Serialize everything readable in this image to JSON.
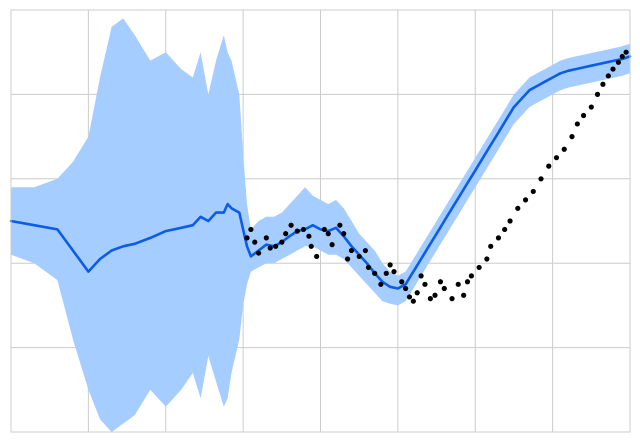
{
  "chart_data": {
    "type": "line",
    "title": "",
    "xlabel": "",
    "ylabel": "",
    "xlim": [
      0,
      8
    ],
    "ylim": [
      -2.5,
      2.5
    ],
    "grid": true,
    "legend": "none",
    "x_gridlines": [
      1,
      2,
      3,
      4,
      5,
      6,
      7
    ],
    "y_gridlines": [
      -1.5,
      -0.5,
      0.5,
      1.5
    ],
    "colors": {
      "mean_line": "#0b5ce6",
      "confidence_band": "#a6cdff",
      "observations": "#000000",
      "grid": "#cccccc"
    },
    "series": [
      {
        "role": "prediction",
        "x": [
          0.0,
          0.3,
          0.6,
          0.8,
          1.0,
          1.15,
          1.3,
          1.45,
          1.6,
          1.8,
          2.0,
          2.2,
          2.35,
          2.45,
          2.55,
          2.65,
          2.75,
          2.8,
          2.85,
          2.95,
          3.0,
          3.05,
          3.1,
          3.2,
          3.3,
          3.4,
          3.5,
          3.6,
          3.7,
          3.8,
          3.9,
          4.0,
          4.1,
          4.2,
          4.3,
          4.4,
          4.5,
          4.6,
          4.7,
          4.8,
          4.9,
          5.0,
          5.1,
          5.2,
          5.3,
          5.4,
          5.5,
          5.6,
          5.7,
          5.8,
          5.9,
          6.0,
          6.1,
          6.2,
          6.3,
          6.4,
          6.5,
          6.6,
          6.7,
          6.8,
          6.9,
          7.0,
          7.1,
          7.2,
          7.3,
          7.4,
          7.5,
          7.6,
          7.7,
          7.8,
          7.9,
          8.0
        ],
        "mean": [
          0.0,
          -0.05,
          -0.1,
          -0.35,
          -0.6,
          -0.45,
          -0.35,
          -0.3,
          -0.27,
          -0.2,
          -0.12,
          -0.08,
          -0.05,
          0.05,
          0.0,
          0.1,
          0.1,
          0.2,
          0.15,
          0.1,
          -0.1,
          -0.3,
          -0.42,
          -0.35,
          -0.28,
          -0.3,
          -0.25,
          -0.18,
          -0.12,
          -0.1,
          -0.05,
          -0.1,
          -0.12,
          -0.08,
          -0.18,
          -0.3,
          -0.4,
          -0.5,
          -0.62,
          -0.72,
          -0.78,
          -0.8,
          -0.75,
          -0.6,
          -0.45,
          -0.3,
          -0.15,
          0.0,
          0.15,
          0.3,
          0.45,
          0.6,
          0.75,
          0.9,
          1.05,
          1.2,
          1.35,
          1.45,
          1.55,
          1.6,
          1.65,
          1.7,
          1.75,
          1.78,
          1.8,
          1.82,
          1.84,
          1.86,
          1.88,
          1.9,
          1.92,
          1.95
        ],
        "upper": [
          0.4,
          0.4,
          0.5,
          0.7,
          1.0,
          1.7,
          2.3,
          2.4,
          2.2,
          1.9,
          2.0,
          1.8,
          1.7,
          2.0,
          1.5,
          1.9,
          2.2,
          2.0,
          1.9,
          1.5,
          0.8,
          0.2,
          -0.1,
          0.0,
          0.05,
          0.05,
          0.1,
          0.2,
          0.3,
          0.4,
          0.3,
          0.25,
          0.2,
          0.25,
          0.15,
          0.0,
          -0.15,
          -0.25,
          -0.35,
          -0.5,
          -0.6,
          -0.65,
          -0.6,
          -0.45,
          -0.3,
          -0.15,
          0.0,
          0.15,
          0.3,
          0.45,
          0.6,
          0.75,
          0.9,
          1.05,
          1.2,
          1.35,
          1.5,
          1.6,
          1.7,
          1.75,
          1.8,
          1.85,
          1.9,
          1.93,
          1.95,
          1.97,
          1.99,
          2.01,
          2.03,
          2.05,
          2.07,
          2.1
        ],
        "lower": [
          -0.4,
          -0.5,
          -0.7,
          -1.4,
          -2.0,
          -2.35,
          -2.5,
          -2.4,
          -2.3,
          -2.0,
          -2.2,
          -2.0,
          -1.8,
          -2.1,
          -1.6,
          -1.9,
          -2.2,
          -2.1,
          -1.8,
          -1.4,
          -1.0,
          -0.75,
          -0.6,
          -0.55,
          -0.5,
          -0.5,
          -0.45,
          -0.4,
          -0.35,
          -0.3,
          -0.3,
          -0.35,
          -0.4,
          -0.4,
          -0.45,
          -0.55,
          -0.65,
          -0.75,
          -0.85,
          -0.95,
          -0.98,
          -1.0,
          -0.95,
          -0.8,
          -0.65,
          -0.5,
          -0.35,
          -0.2,
          -0.05,
          0.1,
          0.25,
          0.4,
          0.55,
          0.7,
          0.85,
          1.0,
          1.15,
          1.25,
          1.35,
          1.4,
          1.45,
          1.5,
          1.55,
          1.58,
          1.6,
          1.62,
          1.64,
          1.66,
          1.68,
          1.7,
          1.72,
          1.75
        ]
      },
      {
        "role": "observations",
        "x": [
          3.05,
          3.1,
          3.15,
          3.2,
          3.3,
          3.35,
          3.42,
          3.5,
          3.55,
          3.62,
          3.7,
          3.78,
          3.85,
          3.88,
          3.95,
          4.05,
          4.1,
          4.15,
          4.25,
          4.3,
          4.35,
          4.4,
          4.5,
          4.58,
          4.62,
          4.7,
          4.78,
          4.85,
          4.9,
          4.95,
          5.05,
          5.1,
          5.15,
          5.2,
          5.25,
          5.3,
          5.35,
          5.42,
          5.48,
          5.55,
          5.6,
          5.7,
          5.78,
          5.85,
          5.9,
          5.95,
          6.05,
          6.15,
          6.2,
          6.3,
          6.38,
          6.45,
          6.55,
          6.65,
          6.75,
          6.85,
          6.95,
          7.05,
          7.15,
          7.25,
          7.32,
          7.4,
          7.5,
          7.58,
          7.65,
          7.72,
          7.78,
          7.85,
          7.9,
          7.95
        ],
        "y": [
          -0.2,
          -0.1,
          -0.25,
          -0.38,
          -0.2,
          -0.32,
          -0.3,
          -0.25,
          -0.15,
          -0.05,
          -0.12,
          -0.1,
          -0.18,
          -0.3,
          -0.42,
          -0.1,
          -0.15,
          -0.28,
          -0.05,
          -0.15,
          -0.45,
          -0.35,
          -0.42,
          -0.35,
          -0.55,
          -0.62,
          -0.75,
          -0.62,
          -0.52,
          -0.6,
          -0.72,
          -0.8,
          -0.9,
          -0.95,
          -0.85,
          -0.65,
          -0.75,
          -0.92,
          -0.88,
          -0.72,
          -0.8,
          -0.92,
          -0.75,
          -0.88,
          -0.72,
          -0.65,
          -0.55,
          -0.45,
          -0.3,
          -0.2,
          -0.1,
          0.0,
          0.15,
          0.25,
          0.35,
          0.5,
          0.65,
          0.75,
          0.85,
          1.0,
          1.15,
          1.25,
          1.35,
          1.5,
          1.62,
          1.72,
          1.8,
          1.88,
          1.95,
          2.0
        ]
      }
    ]
  }
}
